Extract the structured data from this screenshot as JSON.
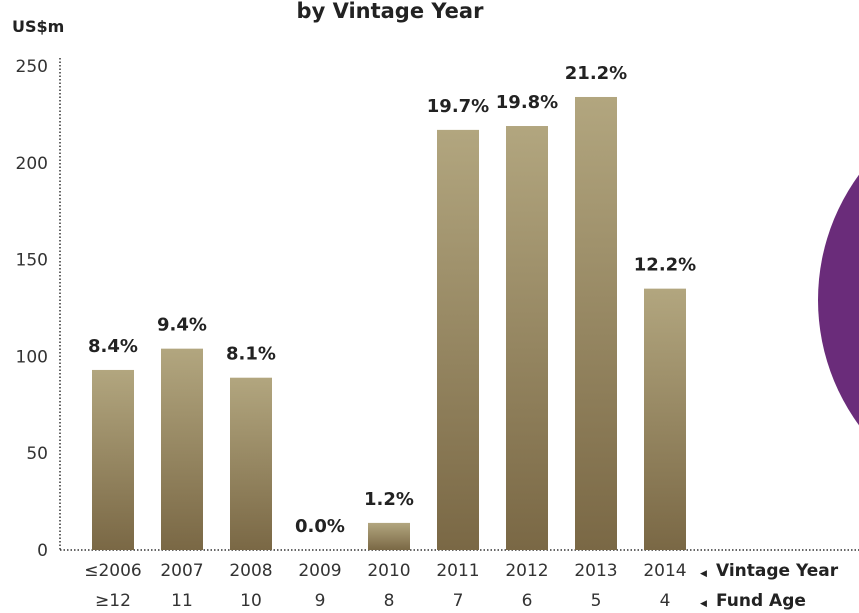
{
  "chart_data": {
    "type": "bar",
    "title": "by Vintage Year",
    "y_label": "US$m",
    "categories": [
      "≤2006",
      "2007",
      "2008",
      "2009",
      "2010",
      "2011",
      "2012",
      "2013",
      "2014"
    ],
    "category_axis_label": "Vintage Year",
    "fund_ages": [
      "≥12",
      "11",
      "10",
      "9",
      "8",
      "7",
      "6",
      "5",
      "4"
    ],
    "fund_age_label": "Fund Age",
    "values": [
      93,
      104,
      89,
      0,
      14,
      217,
      219,
      234,
      135
    ],
    "share_labels": [
      "8.4%",
      "9.4%",
      "8.1%",
      "0.0%",
      "1.2%",
      "19.7%",
      "19.8%",
      "21.2%",
      "12.2%"
    ],
    "gradient": [
      "#b2a67f",
      "#7a6845"
    ],
    "ylim": [
      0,
      250
    ],
    "yticks": [
      0,
      50,
      100,
      150,
      200,
      250
    ]
  }
}
